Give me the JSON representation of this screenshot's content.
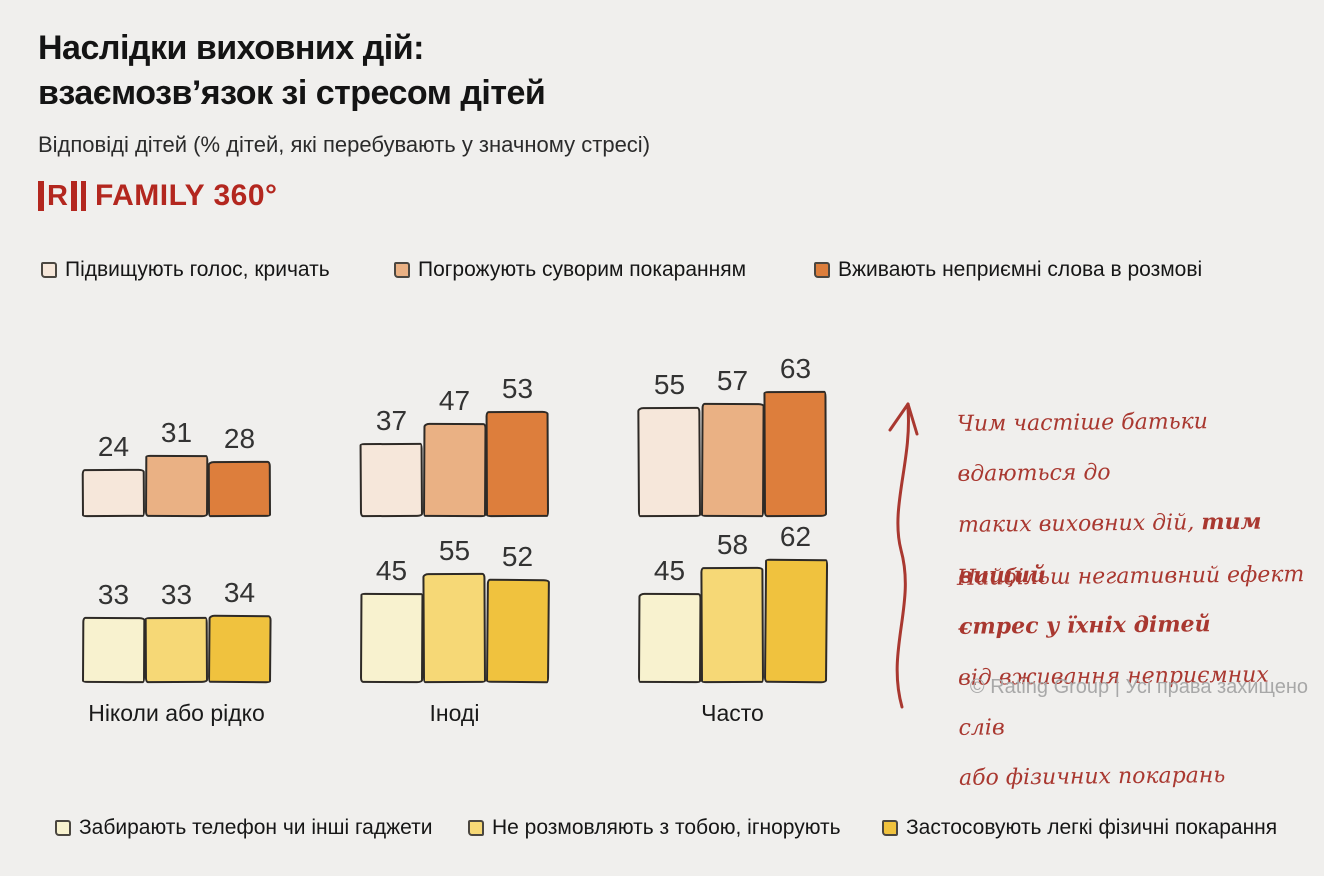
{
  "header": {
    "title_line1": "Наслідки виховних дій:",
    "title_line2": "взаємозв’язок зі стресом дітей",
    "subtitle": "Відповіді дітей (% дітей, які перебувають у значному стресі)",
    "logo_mark": "R",
    "logo_text": "FAMILY 360°"
  },
  "colors": {
    "background": "#f0efed",
    "accent_red": "#a93830",
    "logo_red": "#b3271f",
    "text_dark": "#141414",
    "muted_gray": "#a8a8a8",
    "bar_outline": "#2e2a26"
  },
  "chart_data": {
    "type": "bar",
    "title": "Наслідки виховних дій: взаємозв’язок зі стресом дітей",
    "subtitle": "Відповіді дітей (% дітей, які перебувають у значному стресі)",
    "unit": "%",
    "categories": [
      "Ніколи або рідко",
      "Іноді",
      "Часто"
    ],
    "series": [
      {
        "name": "Підвищують голос, кричать",
        "row": "top",
        "color": "#f6e7da",
        "values": [
          24,
          37,
          55
        ]
      },
      {
        "name": "Погрожують суворим покаранням",
        "row": "top",
        "color": "#eab184",
        "values": [
          31,
          47,
          57
        ]
      },
      {
        "name": "Вживають неприємні слова в розмові",
        "row": "top",
        "color": "#dd7e3c",
        "values": [
          28,
          53,
          63
        ]
      },
      {
        "name": "Забирають телефон чи інші гаджети",
        "row": "bottom",
        "color": "#f8f2cf",
        "values": [
          33,
          45,
          45
        ]
      },
      {
        "name": "Не розмовляють з тобою, ігнорують",
        "row": "bottom",
        "color": "#f6d876",
        "values": [
          33,
          55,
          58
        ]
      },
      {
        "name": "Застосовують легкі фізичні покарання",
        "row": "bottom",
        "color": "#f0c23e",
        "values": [
          34,
          52,
          62
        ]
      }
    ],
    "legend_position": "top and bottom",
    "grid": false,
    "axes": false,
    "value_labels": true
  },
  "annotations": {
    "arrow_note": {
      "line1": "Чим частіше батьки вдаються до",
      "line2_regular": "таких виховних дій, ",
      "line2_bold": "тим вищий",
      "line3_bold": "стрес у їхніх дітей"
    },
    "effect_note": {
      "line1": "Найбільш негативний ефект –",
      "line2": "від вживання неприємних слів",
      "line3": "або фізичних покарань"
    }
  },
  "footer": {
    "copyright": "© Rating Group | Усі права захищено"
  }
}
